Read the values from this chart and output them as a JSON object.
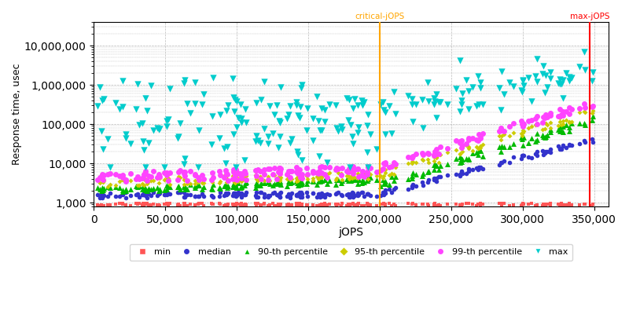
{
  "xlabel": "jOPS",
  "ylabel": "Response time, usec",
  "xlim": [
    0,
    360000
  ],
  "ylim_log": [
    800,
    40000000
  ],
  "critical_jops": 200000,
  "max_jops": 347000,
  "critical_label": "critical-jOPS",
  "max_label": "max-jOPS",
  "critical_color": "#FFA500",
  "max_color": "#FF0000",
  "bg_color": "#FFFFFF",
  "grid_color": "#BBBBBB",
  "series": {
    "min": {
      "color": "#FF5555",
      "marker": "s",
      "ms": 3,
      "label": "min"
    },
    "median": {
      "color": "#3333CC",
      "marker": "o",
      "ms": 4,
      "label": "median"
    },
    "p90": {
      "color": "#00BB00",
      "marker": "^",
      "ms": 5,
      "label": "90-th percentile"
    },
    "p95": {
      "color": "#CCCC00",
      "marker": "D",
      "ms": 3,
      "label": "95-th percentile"
    },
    "p99": {
      "color": "#FF44FF",
      "marker": "o",
      "ms": 5,
      "label": "99-th percentile"
    },
    "max": {
      "color": "#00CCCC",
      "marker": "v",
      "ms": 6,
      "label": "max"
    }
  }
}
